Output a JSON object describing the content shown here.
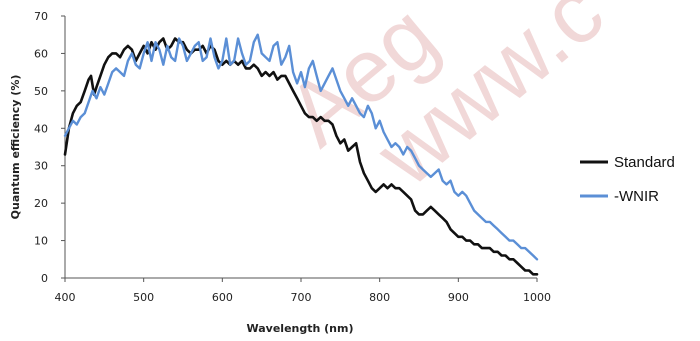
{
  "watermark": {
    "line1": "Aeg",
    "line2": "www.c"
  },
  "chart_data": {
    "type": "line",
    "xlabel": "Wavelength (nm)",
    "ylabel": "Quantum efficiency (%)",
    "xlim": [
      400,
      1000
    ],
    "ylim": [
      0,
      70
    ],
    "xticks": [
      400,
      500,
      600,
      700,
      800,
      900,
      1000
    ],
    "yticks": [
      0,
      10,
      20,
      30,
      40,
      50,
      60,
      70
    ],
    "grid": false,
    "legend_position": "right",
    "series": [
      {
        "name": "Standard",
        "color": "#111111",
        "x": [
          400,
          405,
          410,
          415,
          420,
          425,
          430,
          433,
          437,
          440,
          445,
          450,
          455,
          460,
          465,
          470,
          475,
          480,
          485,
          490,
          495,
          500,
          505,
          510,
          515,
          520,
          525,
          530,
          535,
          540,
          545,
          550,
          555,
          560,
          565,
          570,
          575,
          580,
          585,
          590,
          595,
          600,
          605,
          610,
          615,
          620,
          625,
          630,
          635,
          640,
          645,
          650,
          655,
          660,
          665,
          670,
          675,
          680,
          685,
          690,
          695,
          700,
          705,
          710,
          715,
          720,
          725,
          730,
          735,
          740,
          745,
          750,
          755,
          760,
          765,
          770,
          775,
          780,
          785,
          790,
          795,
          800,
          805,
          810,
          815,
          820,
          825,
          830,
          835,
          840,
          845,
          850,
          855,
          860,
          865,
          870,
          875,
          880,
          885,
          890,
          895,
          900,
          905,
          910,
          915,
          920,
          925,
          930,
          935,
          940,
          945,
          950,
          955,
          960,
          965,
          970,
          975,
          980,
          985,
          990,
          995,
          1000
        ],
        "y": [
          33,
          40,
          44,
          46,
          47,
          50,
          53,
          54,
          49,
          51,
          54,
          57,
          59,
          60,
          60,
          59,
          61,
          62,
          61,
          58,
          60,
          62,
          60,
          63,
          61,
          63,
          64,
          61,
          62,
          64,
          63,
          63,
          61,
          60,
          61,
          61,
          62,
          60,
          62,
          61,
          58,
          57,
          58,
          57,
          58,
          57,
          58,
          56,
          56,
          57,
          56,
          54,
          55,
          54,
          55,
          53,
          54,
          54,
          52,
          50,
          48,
          46,
          44,
          43,
          43,
          42,
          43,
          42,
          42,
          41,
          38,
          36,
          37,
          34,
          35,
          36,
          31,
          28,
          26,
          24,
          23,
          24,
          25,
          24,
          25,
          24,
          24,
          23,
          22,
          21,
          18,
          17,
          17,
          18,
          19,
          18,
          17,
          16,
          15,
          13,
          12,
          11,
          11,
          10,
          10,
          9,
          9,
          8,
          8,
          8,
          7,
          7,
          6,
          6,
          5,
          5,
          4,
          3,
          2,
          2,
          1,
          1
        ]
      },
      {
        "name": "-WNIR",
        "color": "#5b8fd6",
        "x": [
          400,
          405,
          410,
          415,
          420,
          425,
          430,
          435,
          440,
          445,
          450,
          455,
          460,
          465,
          470,
          475,
          480,
          485,
          490,
          495,
          500,
          505,
          510,
          515,
          520,
          525,
          530,
          535,
          540,
          545,
          550,
          555,
          560,
          565,
          570,
          575,
          580,
          585,
          590,
          595,
          600,
          605,
          610,
          615,
          620,
          625,
          630,
          635,
          640,
          645,
          650,
          655,
          660,
          665,
          670,
          675,
          680,
          685,
          690,
          695,
          700,
          705,
          710,
          715,
          720,
          725,
          730,
          735,
          740,
          745,
          750,
          755,
          760,
          765,
          770,
          775,
          780,
          785,
          790,
          795,
          800,
          805,
          810,
          815,
          820,
          825,
          830,
          835,
          840,
          845,
          850,
          855,
          860,
          865,
          870,
          875,
          880,
          885,
          890,
          895,
          900,
          905,
          910,
          915,
          920,
          925,
          930,
          935,
          940,
          945,
          950,
          955,
          960,
          965,
          970,
          975,
          980,
          985,
          990,
          995,
          1000
        ],
        "y": [
          38,
          40,
          42,
          41,
          43,
          44,
          47,
          50,
          48,
          51,
          49,
          52,
          55,
          56,
          55,
          54,
          58,
          60,
          57,
          56,
          60,
          63,
          58,
          63,
          61,
          57,
          62,
          59,
          58,
          64,
          62,
          58,
          60,
          62,
          63,
          58,
          59,
          64,
          59,
          56,
          58,
          64,
          57,
          58,
          64,
          60,
          57,
          58,
          63,
          65,
          60,
          59,
          58,
          62,
          63,
          57,
          59,
          62,
          55,
          52,
          55,
          51,
          56,
          58,
          54,
          50,
          52,
          54,
          56,
          53,
          50,
          48,
          46,
          48,
          46,
          44,
          43,
          46,
          44,
          40,
          42,
          39,
          37,
          35,
          36,
          35,
          33,
          35,
          34,
          32,
          30,
          29,
          28,
          27,
          28,
          29,
          26,
          25,
          26,
          23,
          22,
          23,
          22,
          20,
          18,
          17,
          16,
          15,
          15,
          14,
          13,
          12,
          11,
          10,
          10,
          9,
          8,
          8,
          7,
          6,
          5
        ]
      }
    ]
  }
}
